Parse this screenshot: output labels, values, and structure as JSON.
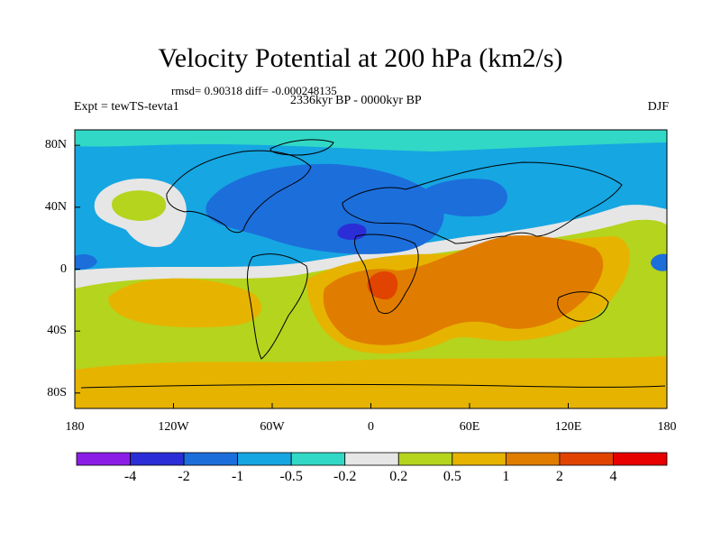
{
  "title": "Velocity Potential at 200 hPa (km2/s)",
  "stats": "rmsd= 0.90318 diff= -0.000248135",
  "experiment": "Expt = tewTS-tevta1",
  "period": "2336kyr BP - 0000kyr BP",
  "season": "DJF",
  "y_ticks": [
    {
      "label": "80N",
      "lat": 80
    },
    {
      "label": "40N",
      "lat": 40
    },
    {
      "label": "0",
      "lat": 0
    },
    {
      "label": "40S",
      "lat": -40
    },
    {
      "label": "80S",
      "lat": -80
    }
  ],
  "x_ticks": [
    {
      "label": "180",
      "lon": -180
    },
    {
      "label": "120W",
      "lon": -120
    },
    {
      "label": "60W",
      "lon": -60
    },
    {
      "label": "0",
      "lon": 0
    },
    {
      "label": "60E",
      "lon": 60
    },
    {
      "label": "120E",
      "lon": 120
    },
    {
      "label": "180",
      "lon": 180
    }
  ],
  "colorbar": {
    "colors": [
      "#8b1ee6",
      "#2b2ed6",
      "#1c6edb",
      "#16a6e2",
      "#31d8c6",
      "#e6e6e6",
      "#b4d41e",
      "#e6b400",
      "#e07d00",
      "#e04400",
      "#e60000"
    ],
    "labels": [
      "-4",
      "-2",
      "-1",
      "-0.5",
      "-0.2",
      "0.2",
      "0.5",
      "1",
      "2",
      "4"
    ]
  }
}
